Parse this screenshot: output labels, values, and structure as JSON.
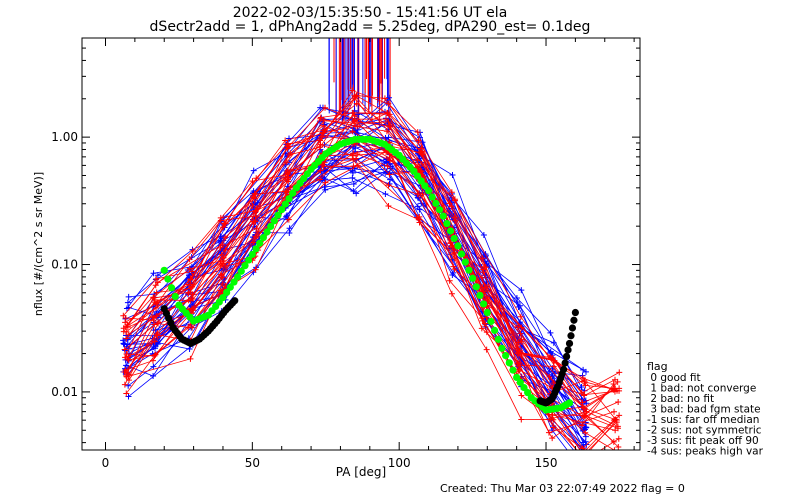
{
  "chart_data": {
    "type": "scatter",
    "title": "2022-02-03/15:35:50 - 15:41:56 UT ela",
    "subtitle": "dSectr2add = 1, dPhAng2add = 5.25deg, dPA290_est=   0.1deg",
    "xlabel": "PA [deg]",
    "ylabel": "nflux [#/(cm^2 s sr MeV)]",
    "xlim": [
      -8,
      182
    ],
    "ylim": [
      0.0035,
      6.0
    ],
    "yscale": "log",
    "grid": false,
    "x_ticks": [
      0,
      50,
      100,
      150
    ],
    "x_tick_labels": [
      "0",
      "50",
      "100",
      "150"
    ],
    "y_ticks": [
      0.01,
      0.1,
      1.0
    ],
    "y_tick_labels": [
      "0.01",
      "0.10",
      "1.00"
    ],
    "series": [
      {
        "color": "#0000ff",
        "x": [
          7,
          17,
          29,
          40,
          51,
          62,
          74,
          85,
          96,
          107,
          118,
          129,
          141,
          152,
          163
        ],
        "y_mean": [
          0.022,
          0.035,
          0.055,
          0.11,
          0.22,
          0.42,
          0.72,
          0.88,
          0.86,
          0.52,
          0.2,
          0.07,
          0.025,
          0.012,
          0.006
        ],
        "spread": 0.28,
        "count": 34
      },
      {
        "color": "#ff0000",
        "x": [
          7,
          17,
          29,
          40,
          51,
          62,
          74,
          85,
          96,
          107,
          118,
          129,
          141,
          152,
          163,
          174
        ],
        "y_mean": [
          0.018,
          0.032,
          0.05,
          0.1,
          0.2,
          0.4,
          0.7,
          0.95,
          0.82,
          0.45,
          0.15,
          0.045,
          0.016,
          0.008,
          0.006,
          0.006
        ],
        "spread": 0.3,
        "count": 28
      },
      {
        "color": "#00ff00",
        "style": "fit",
        "x": [
          20,
          25,
          30,
          35,
          40,
          45,
          50,
          55,
          60,
          65,
          70,
          75,
          80,
          85,
          90,
          95,
          100,
          105,
          110,
          115,
          120,
          125,
          130,
          135,
          140,
          145,
          150,
          155,
          158
        ],
        "y": [
          0.09,
          0.048,
          0.036,
          0.04,
          0.055,
          0.08,
          0.12,
          0.18,
          0.27,
          0.4,
          0.56,
          0.74,
          0.88,
          0.96,
          0.96,
          0.88,
          0.72,
          0.54,
          0.38,
          0.24,
          0.14,
          0.078,
          0.042,
          0.022,
          0.013,
          0.009,
          0.0072,
          0.0075,
          0.0082
        ]
      },
      {
        "color": "#000000",
        "style": "fit",
        "segments": [
          {
            "x": [
              20,
              23,
              26,
              29,
              32,
              35,
              38,
              41,
              44
            ],
            "y": [
              0.045,
              0.032,
              0.026,
              0.024,
              0.026,
              0.03,
              0.036,
              0.044,
              0.052
            ]
          },
          {
            "x": [
              148,
              150,
              152,
              154,
              156,
              158,
              160
            ],
            "y": [
              0.0085,
              0.0082,
              0.0088,
              0.011,
              0.015,
              0.024,
              0.042
            ]
          }
        ]
      }
    ],
    "spikes": {
      "x_min": 76,
      "x_max": 97,
      "colors": [
        "#0000ff",
        "#ff0000"
      ]
    },
    "legend": {
      "placement": "lower-right",
      "title": "flag",
      "entries": [
        " 0 good fit",
        " 1 bad: not converge",
        " 2 bad: no fit",
        " 3 bad: bad fgm state",
        "-1 sus: far off median",
        "-2 sus: not symmetric",
        "-3 sus: fit peak off 90",
        "-4 sus: peaks high var"
      ]
    },
    "footer": "Created: Thu Mar 03 22:07:49 2022   flag = 0"
  }
}
